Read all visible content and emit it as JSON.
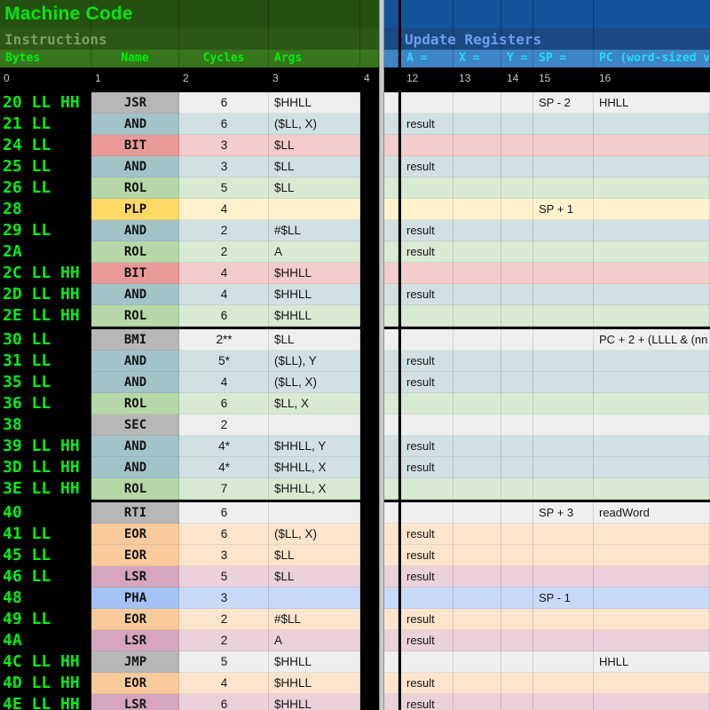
{
  "left_header": {
    "title": "Machine Code",
    "subtitle": "Instructions",
    "columns": [
      "Bytes",
      "Name",
      "Cycles",
      "Args"
    ],
    "index_row": [
      "0",
      "1",
      "2",
      "3",
      "4"
    ]
  },
  "right_header": {
    "title": "Update Registers",
    "columns": [
      "A =",
      "X =",
      "Y =",
      "SP =",
      "PC (word-sized val"
    ],
    "index_row": [
      "12",
      "13",
      "14",
      "15",
      "16"
    ]
  },
  "palette": {
    "left_band_bg": "#26500f",
    "left_colhead_bg": "#38761d",
    "bright_green_text": "#00f010",
    "muted_green_text": "#7d9f63",
    "right_band_bg": "#1b4986",
    "right_colhead_bg": "#3d85c6",
    "cyan_text": "#2bd7f7",
    "periwinkle_text": "#6d9eeb",
    "index_text": "#c4c4c4",
    "divider_gray": "#c9c9c9"
  },
  "colors": {
    "gray": {
      "name": "#b7b7b7",
      "light": "#efefef"
    },
    "cyan": {
      "name": "#a2c4c9",
      "light": "#d0e0e3"
    },
    "red": {
      "name": "#ea9999",
      "light": "#f4cccc"
    },
    "green": {
      "name": "#b6d7a8",
      "light": "#d9ead3"
    },
    "yellow": {
      "name": "#ffd966",
      "light": "#fff2cc"
    },
    "orange": {
      "name": "#f9cb9c",
      "light": "#fce5cd"
    },
    "magenta": {
      "name": "#d5a6bd",
      "light": "#ead1dc"
    },
    "blue": {
      "name": "#a4c2f4",
      "light": "#c9daf8"
    }
  },
  "rows": [
    {
      "bytes": "20 LL HH",
      "name": "JSR",
      "cycles": "6",
      "args": "$HHLL",
      "color": "gray",
      "a": "",
      "x": "",
      "y": "",
      "sp": "SP - 2",
      "pc": "HHLL"
    },
    {
      "bytes": "21 LL",
      "name": "AND",
      "cycles": "6",
      "args": "($LL, X)",
      "color": "cyan",
      "a": "result",
      "x": "",
      "y": "",
      "sp": "",
      "pc": ""
    },
    {
      "bytes": "24 LL",
      "name": "BIT",
      "cycles": "3",
      "args": "$LL",
      "color": "red",
      "a": "",
      "x": "",
      "y": "",
      "sp": "",
      "pc": ""
    },
    {
      "bytes": "25 LL",
      "name": "AND",
      "cycles": "3",
      "args": "$LL",
      "color": "cyan",
      "a": "result",
      "x": "",
      "y": "",
      "sp": "",
      "pc": ""
    },
    {
      "bytes": "26 LL",
      "name": "ROL",
      "cycles": "5",
      "args": "$LL",
      "color": "green",
      "a": "",
      "x": "",
      "y": "",
      "sp": "",
      "pc": ""
    },
    {
      "bytes": "28",
      "name": "PLP",
      "cycles": "4",
      "args": "",
      "color": "yellow",
      "a": "",
      "x": "",
      "y": "",
      "sp": "SP + 1",
      "pc": ""
    },
    {
      "bytes": "29 LL",
      "name": "AND",
      "cycles": "2",
      "args": "#$LL",
      "color": "cyan",
      "a": "result",
      "x": "",
      "y": "",
      "sp": "",
      "pc": ""
    },
    {
      "bytes": "2A",
      "name": "ROL",
      "cycles": "2",
      "args": "A",
      "color": "green",
      "a": "result",
      "x": "",
      "y": "",
      "sp": "",
      "pc": ""
    },
    {
      "bytes": "2C LL HH",
      "name": "BIT",
      "cycles": "4",
      "args": "$HHLL",
      "color": "red",
      "a": "",
      "x": "",
      "y": "",
      "sp": "",
      "pc": ""
    },
    {
      "bytes": "2D LL HH",
      "name": "AND",
      "cycles": "4",
      "args": "$HHLL",
      "color": "cyan",
      "a": "result",
      "x": "",
      "y": "",
      "sp": "",
      "pc": ""
    },
    {
      "bytes": "2E LL HH",
      "name": "ROL",
      "cycles": "6",
      "args": "$HHLL",
      "color": "green",
      "a": "",
      "x": "",
      "y": "",
      "sp": "",
      "pc": "",
      "section_end": true
    },
    {
      "bytes": "30 LL",
      "name": "BMI",
      "cycles": "2**",
      "args": "$LL",
      "color": "gray",
      "a": "",
      "x": "",
      "y": "",
      "sp": "",
      "pc": "PC + 2 + (LLLL & (nn"
    },
    {
      "bytes": "31 LL",
      "name": "AND",
      "cycles": "5*",
      "args": "($LL), Y",
      "color": "cyan",
      "a": "result",
      "x": "",
      "y": "",
      "sp": "",
      "pc": ""
    },
    {
      "bytes": "35 LL",
      "name": "AND",
      "cycles": "4",
      "args": "($LL, X)",
      "color": "cyan",
      "a": "result",
      "x": "",
      "y": "",
      "sp": "",
      "pc": ""
    },
    {
      "bytes": "36 LL",
      "name": "ROL",
      "cycles": "6",
      "args": "$LL, X",
      "color": "green",
      "a": "",
      "x": "",
      "y": "",
      "sp": "",
      "pc": ""
    },
    {
      "bytes": "38",
      "name": "SEC",
      "cycles": "2",
      "args": "",
      "color": "gray",
      "a": "",
      "x": "",
      "y": "",
      "sp": "",
      "pc": ""
    },
    {
      "bytes": "39 LL HH",
      "name": "AND",
      "cycles": "4*",
      "args": "$HHLL, Y",
      "color": "cyan",
      "a": "result",
      "x": "",
      "y": "",
      "sp": "",
      "pc": ""
    },
    {
      "bytes": "3D LL HH",
      "name": "AND",
      "cycles": "4*",
      "args": "$HHLL, X",
      "color": "cyan",
      "a": "result",
      "x": "",
      "y": "",
      "sp": "",
      "pc": ""
    },
    {
      "bytes": "3E LL HH",
      "name": "ROL",
      "cycles": "7",
      "args": "$HHLL, X",
      "color": "green",
      "a": "",
      "x": "",
      "y": "",
      "sp": "",
      "pc": "",
      "section_end": true
    },
    {
      "bytes": "40",
      "name": "RTI",
      "cycles": "6",
      "args": "",
      "color": "gray",
      "a": "",
      "x": "",
      "y": "",
      "sp": "SP + 3",
      "pc": "readWord"
    },
    {
      "bytes": "41 LL",
      "name": "EOR",
      "cycles": "6",
      "args": "($LL, X)",
      "color": "orange",
      "a": "result",
      "x": "",
      "y": "",
      "sp": "",
      "pc": ""
    },
    {
      "bytes": "45 LL",
      "name": "EOR",
      "cycles": "3",
      "args": "$LL",
      "color": "orange",
      "a": "result",
      "x": "",
      "y": "",
      "sp": "",
      "pc": ""
    },
    {
      "bytes": "46 LL",
      "name": "LSR",
      "cycles": "5",
      "args": "$LL",
      "color": "magenta",
      "a": "result",
      "x": "",
      "y": "",
      "sp": "",
      "pc": ""
    },
    {
      "bytes": "48",
      "name": "PHA",
      "cycles": "3",
      "args": "",
      "color": "blue",
      "a": "",
      "x": "",
      "y": "",
      "sp": "SP - 1",
      "pc": ""
    },
    {
      "bytes": "49 LL",
      "name": "EOR",
      "cycles": "2",
      "args": "#$LL",
      "color": "orange",
      "a": "result",
      "x": "",
      "y": "",
      "sp": "",
      "pc": ""
    },
    {
      "bytes": "4A",
      "name": "LSR",
      "cycles": "2",
      "args": "A",
      "color": "magenta",
      "a": "result",
      "x": "",
      "y": "",
      "sp": "",
      "pc": ""
    },
    {
      "bytes": "4C LL HH",
      "name": "JMP",
      "cycles": "5",
      "args": "$HHLL",
      "color": "gray",
      "a": "",
      "x": "",
      "y": "",
      "sp": "",
      "pc": "HHLL"
    },
    {
      "bytes": "4D LL HH",
      "name": "EOR",
      "cycles": "4",
      "args": "$HHLL",
      "color": "orange",
      "a": "result",
      "x": "",
      "y": "",
      "sp": "",
      "pc": ""
    },
    {
      "bytes": "4E LL HH",
      "name": "LSR",
      "cycles": "6",
      "args": "$HHLL",
      "color": "magenta",
      "a": "result",
      "x": "",
      "y": "",
      "sp": "",
      "pc": ""
    }
  ]
}
